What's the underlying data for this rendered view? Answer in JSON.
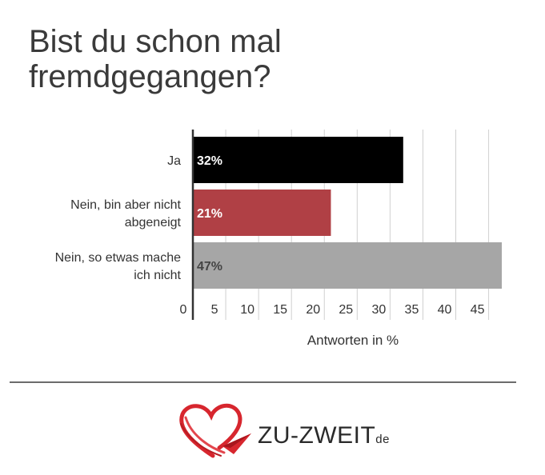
{
  "title_lines": [
    "Bist du schon mal",
    "fremdgegangen?"
  ],
  "chart_data": {
    "type": "bar",
    "orientation": "horizontal",
    "categories": [
      [
        "Ja"
      ],
      [
        "Nein, bin aber nicht",
        "abgeneigt"
      ],
      [
        "Nein, so etwas mache",
        "ich nicht"
      ]
    ],
    "values": [
      32,
      21,
      47
    ],
    "value_labels": [
      "32%",
      "21%",
      "47%"
    ],
    "bar_colors": [
      "#000000",
      "#b04045",
      "#a6a6a6"
    ],
    "value_label_colors": [
      "#ffffff",
      "#ffffff",
      "#444444"
    ],
    "xticks": [
      0,
      5,
      10,
      15,
      20,
      25,
      30,
      35,
      40,
      45
    ],
    "xlim": [
      0,
      47
    ],
    "xlabel": "Antworten in %",
    "grid": true
  },
  "logo": {
    "brand": "ZU-ZWEIT",
    "suffix": "de",
    "accent": "#d7262e"
  }
}
